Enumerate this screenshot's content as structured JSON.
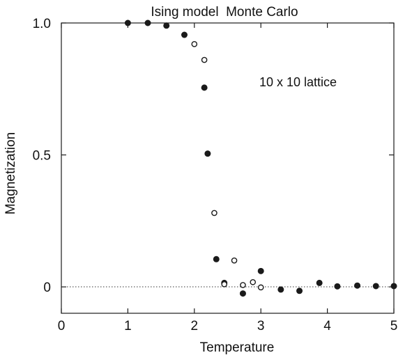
{
  "chart_data": {
    "type": "scatter",
    "title": "Ising model  Monte Carlo",
    "annotation": "10 x 10 lattice",
    "xlabel": "Temperature",
    "ylabel": "Magnetization",
    "xlim": [
      0,
      5
    ],
    "ylim": [
      -0.1,
      1.0
    ],
    "x_ticks": [
      0,
      1,
      2,
      3,
      4,
      5
    ],
    "x_tick_labels": [
      "0",
      "1",
      "2",
      "3",
      "4",
      "5"
    ],
    "y_ticks": [
      0,
      0.5,
      1.0
    ],
    "y_tick_labels": [
      "0",
      "0.5",
      "1.0"
    ],
    "grid": false,
    "zero_reference_line": true,
    "series": [
      {
        "marker": "filled-circle",
        "color": "#1a1a1a",
        "points": [
          {
            "x": 1.0,
            "y": 1.0
          },
          {
            "x": 1.3,
            "y": 1.0
          },
          {
            "x": 1.58,
            "y": 0.99
          },
          {
            "x": 1.85,
            "y": 0.955
          },
          {
            "x": 2.15,
            "y": 0.755
          },
          {
            "x": 2.2,
            "y": 0.505
          },
          {
            "x": 2.33,
            "y": 0.105
          },
          {
            "x": 2.45,
            "y": 0.015
          },
          {
            "x": 2.73,
            "y": -0.025
          },
          {
            "x": 3.0,
            "y": 0.06
          },
          {
            "x": 3.3,
            "y": -0.01
          },
          {
            "x": 3.58,
            "y": -0.015
          },
          {
            "x": 3.88,
            "y": 0.015
          },
          {
            "x": 4.15,
            "y": 0.002
          },
          {
            "x": 4.45,
            "y": 0.005
          },
          {
            "x": 4.73,
            "y": 0.003
          },
          {
            "x": 5.0,
            "y": 0.003
          }
        ]
      },
      {
        "marker": "open-circle",
        "color": "#1a1a1a",
        "points": [
          {
            "x": 2.0,
            "y": 0.92
          },
          {
            "x": 2.15,
            "y": 0.86
          },
          {
            "x": 2.3,
            "y": 0.28
          },
          {
            "x": 2.45,
            "y": 0.01
          },
          {
            "x": 2.6,
            "y": 0.1
          },
          {
            "x": 2.73,
            "y": 0.007
          },
          {
            "x": 2.88,
            "y": 0.018
          },
          {
            "x": 3.0,
            "y": -0.002
          }
        ]
      }
    ]
  }
}
